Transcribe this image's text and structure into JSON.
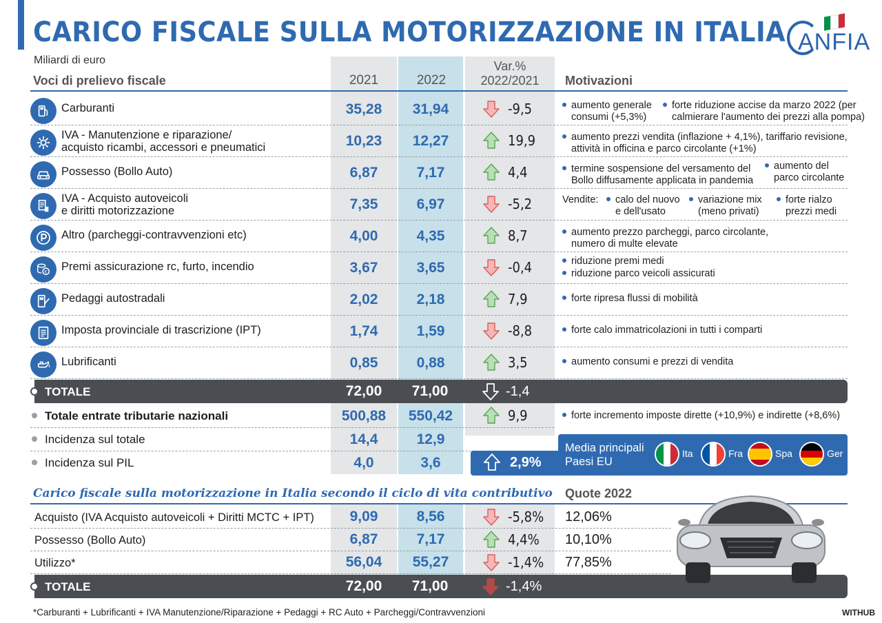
{
  "title": "CARICO FISCALE SULLA MOTORIZZAZIONE IN ITALIA",
  "unit": "Miliardi di euro",
  "headers": {
    "voci": "Voci di prelievo fiscale",
    "y2021": "2021",
    "y2022": "2022",
    "var_line1": "Var.%",
    "var_line2": "2022/2021",
    "motivazioni": "Motivazioni"
  },
  "logo": {
    "text": "ANFIA"
  },
  "rows": [
    {
      "label": [
        "Carburanti"
      ],
      "icon": "fuel-pump-icon",
      "v2021": "35,28",
      "v2022": "31,94",
      "dir": "down",
      "var": "-9,5",
      "mot": [
        {
          "x": 772,
          "y": 9,
          "dot": true,
          "lines": [
            "aumento generale",
            "consumi (+5,3%)"
          ]
        },
        {
          "x": 918,
          "y": 9,
          "dot": true,
          "lines": [
            "forte riduzione accise da marzo 2022 (per",
            "calmierare l'aumento dei prezzi alla pompa)"
          ]
        }
      ]
    },
    {
      "label": [
        "IVA - Manutenzione e riparazione/",
        "acquisto ricambi, accessori e pneumatici"
      ],
      "icon": "gear-icon",
      "v2021": "10,23",
      "v2022": "12,27",
      "dir": "up",
      "var": "19,9",
      "mot": [
        {
          "x": 772,
          "y": 9,
          "dot": true,
          "lines": [
            "aumento prezzi vendita (inflazione + 4,1%), tariffario revisione,",
            "attività in officina e parco circolante (+1%)"
          ]
        }
      ]
    },
    {
      "label": [
        "Possesso (Bollo Auto)"
      ],
      "icon": "car-icon",
      "v2021": "6,87",
      "v2022": "7,17",
      "dir": "up",
      "var": "4,4",
      "mot": [
        {
          "x": 772,
          "y": 9,
          "dot": true,
          "lines": [
            "termine sospensione del versamento del",
            "Bollo diffusamente applicata in pandemia"
          ]
        },
        {
          "x": 1066,
          "y": 5,
          "dot": true,
          "lines": [
            "aumento del",
            "parco circolante"
          ]
        }
      ]
    },
    {
      "label": [
        "IVA - Acquisto autoveicoli",
        "e diritti motorizzazione"
      ],
      "icon": "document-icon",
      "v2021": "7,35",
      "v2022": "6,97",
      "dir": "down",
      "var": "-5,2",
      "mot": [
        {
          "x": 772,
          "y": 8,
          "dot": false,
          "lines": [
            "Vendite:"
          ]
        },
        {
          "x": 836,
          "y": 8,
          "dot": true,
          "lines": [
            "calo del nuovo",
            "e dell'usato"
          ]
        },
        {
          "x": 956,
          "y": 8,
          "dot": true,
          "lines": [
            "variazione mix",
            "(meno privati)"
          ]
        },
        {
          "x": 1083,
          "y": 8,
          "dot": true,
          "lines": [
            "forte rialzo",
            "prezzi medi"
          ]
        }
      ]
    },
    {
      "label": [
        "Altro (parcheggi-contravvenzioni etc)"
      ],
      "icon": "parking-icon",
      "v2021": "4,00",
      "v2022": "4,35",
      "dir": "up",
      "var": "8,7",
      "mot": [
        {
          "x": 772,
          "y": 9,
          "dot": true,
          "lines": [
            "aumento prezzo parcheggi, parco circolante,",
            "numero di multe elevate"
          ]
        }
      ]
    },
    {
      "label": [
        "Premi assicurazione rc, furto, incendio"
      ],
      "icon": "coins-icon",
      "v2021": "3,67",
      "v2022": "3,65",
      "dir": "down",
      "var": "-0,4",
      "mot": [
        {
          "x": 772,
          "y": 5,
          "dot": true,
          "lines": [
            "riduzione premi medi"
          ]
        },
        {
          "x": 772,
          "y": 23,
          "dot": true,
          "lines": [
            "riduzione parco veicoli assicurati"
          ]
        }
      ]
    },
    {
      "label": [
        "Pedaggi autostradali"
      ],
      "icon": "toll-icon",
      "v2021": "2,02",
      "v2022": "2,18",
      "dir": "up",
      "var": "7,9",
      "mot": [
        {
          "x": 772,
          "y": 13,
          "dot": true,
          "lines": [
            "forte ripresa flussi di mobilità"
          ]
        }
      ]
    },
    {
      "label": [
        "Imposta provinciale di trascrizione (IPT)"
      ],
      "icon": "paper-icon",
      "v2021": "1,74",
      "v2022": "1,59",
      "dir": "down",
      "var": "-8,8",
      "mot": [
        {
          "x": 772,
          "y": 13,
          "dot": true,
          "lines": [
            "forte calo immatricolazioni in tutti i comparti"
          ]
        }
      ]
    },
    {
      "label": [
        "Lubrificanti"
      ],
      "icon": "oil-can-icon",
      "v2021": "0,85",
      "v2022": "0,88",
      "dir": "up",
      "var": "3,5",
      "mot": [
        {
          "x": 772,
          "y": 13,
          "dot": true,
          "lines": [
            "aumento consumi e prezzi di vendita"
          ]
        }
      ]
    }
  ],
  "totale": {
    "label": "TOTALE",
    "v2021": "72,00",
    "v2022": "71,00",
    "var": "-1,4"
  },
  "entrate": {
    "label": "Totale entrate tributarie nazionali",
    "v2021": "500,88",
    "v2022": "550,42",
    "var": "9,9",
    "mot": "forte incremento imposte dirette (+10,9%) e indirette (+8,6%)"
  },
  "incidenza_totale": {
    "label": "Incidenza sul totale",
    "v2021": "14,4",
    "v2022": "12,9"
  },
  "incidenza_pil": {
    "label": "Incidenza sul PIL",
    "v2021": "4,0",
    "v2022": "3,6",
    "var": "2,9%"
  },
  "eu": {
    "line1": "Media principali",
    "line2": "Paesi EU",
    "countries": [
      {
        "label": "Ita",
        "colors": [
          "#009246",
          "#ffffff",
          "#ce2b37"
        ],
        "orient": "v"
      },
      {
        "label": "Fra",
        "colors": [
          "#0055a4",
          "#ffffff",
          "#ef4135"
        ],
        "orient": "v"
      },
      {
        "label": "Spa",
        "colors": [
          "#c60b1e",
          "#ffc400",
          "#c60b1e"
        ],
        "orient": "h"
      },
      {
        "label": "Ger",
        "colors": [
          "#000000",
          "#dd0000",
          "#ffce00"
        ],
        "orient": "h"
      }
    ]
  },
  "section2": {
    "title": "Carico fiscale sulla motorizzazione in Italia secondo il ciclo di vita contributivo",
    "quote_header": "Quote 2022",
    "rows": [
      {
        "label": "Acquisto (IVA Acquisto autoveicoli + Diritti MCTC + IPT)",
        "v2021": "9,09",
        "v2022": "8,56",
        "dir": "down",
        "var": "-5,8%",
        "quota": "12,06%"
      },
      {
        "label": "Possesso (Bollo Auto)",
        "v2021": "6,87",
        "v2022": "7,17",
        "dir": "up",
        "var": "4,4%",
        "quota": "10,10%"
      },
      {
        "label": "Utilizzo*",
        "v2021": "56,04",
        "v2022": "55,27",
        "dir": "down",
        "var": "-1,4%",
        "quota": "77,85%"
      }
    ],
    "totale": {
      "label": "TOTALE",
      "v2021": "72,00",
      "v2022": "71,00",
      "var": "-1,4%"
    }
  },
  "footnote": "*Carburanti + Lubrificanti + IVA Manutenzione/Riparazione + Pedaggi + RC Auto + Parcheggi/Contravvenzioni",
  "credit": "WITHUB",
  "colors": {
    "accent": "#2f6ab0",
    "up": "#7cc07b",
    "down": "#e07a7a",
    "total_bg": "#4a4e52"
  }
}
